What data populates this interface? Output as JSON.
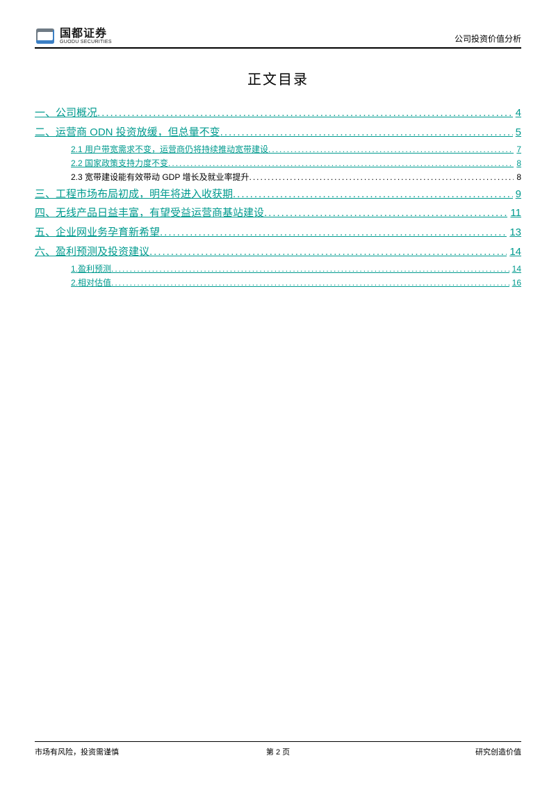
{
  "header": {
    "logo_cn": "国都证券",
    "logo_en": "GUODU SECURITIES",
    "right_text": "公司投资价值分析"
  },
  "title": "正文目录",
  "colors": {
    "link": "#009a8e",
    "text": "#000000",
    "logo_blue": "#3b7fc4",
    "logo_gray": "#6f7b85"
  },
  "toc": [
    {
      "level": 1,
      "label": "一、公司概况",
      "page": "4",
      "link": true
    },
    {
      "level": 1,
      "label": "二、运营商 ODN 投资放缓，但总量不变",
      "page": "5",
      "link": true
    },
    {
      "level": 2,
      "label": "2.1 用户带宽需求不变，运营商仍将持续推动宽带建设",
      "page": "7",
      "link": true
    },
    {
      "level": 2,
      "label": "2.2 国家政策支持力度不变",
      "page": "8",
      "link": true
    },
    {
      "level": 2,
      "label": "2.3 宽带建设能有效带动 GDP 增长及就业率提升",
      "page": "8",
      "link": false
    },
    {
      "level": 1,
      "label": "三、工程市场布局初成，明年将进入收获期",
      "page": "9",
      "link": true
    },
    {
      "level": 1,
      "label": "四、无线产品日益丰富，有望受益运营商基站建设",
      "page": "11",
      "link": true
    },
    {
      "level": 1,
      "label": "五、企业网业务孕育新希望",
      "page": "13",
      "link": true
    },
    {
      "level": 1,
      "label": "六、盈利预测及投资建议",
      "page": "14",
      "link": true
    },
    {
      "level": 2,
      "label": "1.盈利预测",
      "page": "14",
      "link": true
    },
    {
      "level": 2,
      "label": "2.相对估值",
      "page": "16",
      "link": true
    }
  ],
  "footer": {
    "left": "市场有风险，投资需谨慎",
    "center": "第 2 页",
    "right": "研究创造价值"
  }
}
